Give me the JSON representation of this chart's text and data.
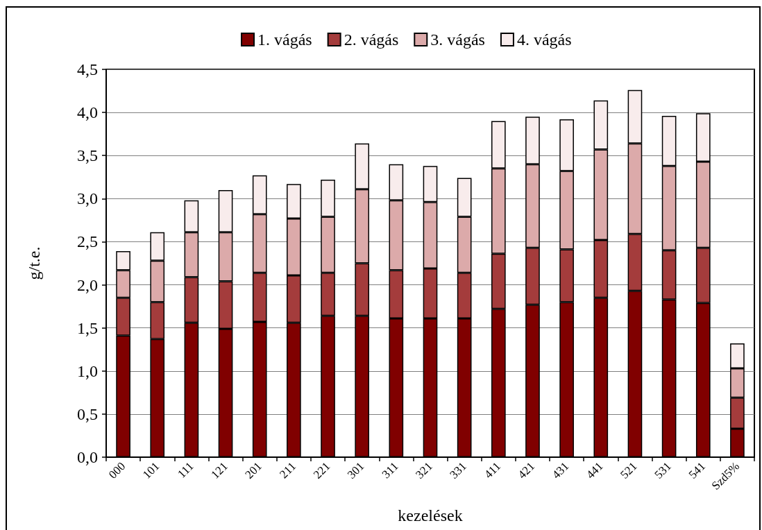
{
  "chart_data": {
    "type": "bar",
    "stacked": true,
    "categories": [
      "000",
      "101",
      "111",
      "121",
      "201",
      "211",
      "221",
      "301",
      "311",
      "321",
      "331",
      "411",
      "421",
      "431",
      "441",
      "521",
      "531",
      "541",
      "Szd5%"
    ],
    "series": [
      {
        "name": "1. vágás",
        "color": "#800000",
        "values": [
          1.41,
          1.37,
          1.56,
          1.49,
          1.57,
          1.56,
          1.64,
          1.64,
          1.61,
          1.61,
          1.61,
          1.72,
          1.77,
          1.8,
          1.85,
          1.93,
          1.83,
          1.79,
          0.33
        ]
      },
      {
        "name": "2. vágás",
        "color": "#a43c3c",
        "values": [
          0.44,
          0.43,
          0.53,
          0.55,
          0.57,
          0.55,
          0.5,
          0.61,
          0.56,
          0.58,
          0.53,
          0.64,
          0.66,
          0.61,
          0.67,
          0.66,
          0.57,
          0.64,
          0.36
        ]
      },
      {
        "name": "3. vágás",
        "color": "#dcaaaa",
        "values": [
          0.32,
          0.48,
          0.52,
          0.57,
          0.68,
          0.66,
          0.65,
          0.86,
          0.81,
          0.77,
          0.65,
          0.99,
          0.97,
          0.91,
          1.05,
          1.05,
          0.98,
          1.0,
          0.34
        ]
      },
      {
        "name": "4. vágás",
        "color": "#f8ecec",
        "values": [
          0.22,
          0.33,
          0.37,
          0.49,
          0.45,
          0.4,
          0.43,
          0.53,
          0.42,
          0.42,
          0.45,
          0.55,
          0.55,
          0.6,
          0.57,
          0.62,
          0.58,
          0.56,
          0.29
        ]
      }
    ],
    "ylim": [
      0,
      4.5
    ],
    "yticks": [
      {
        "value": 0,
        "label": "0,0"
      },
      {
        "value": 0.5,
        "label": "0,5"
      },
      {
        "value": 1,
        "label": "1,0"
      },
      {
        "value": 1.5,
        "label": "1,5"
      },
      {
        "value": 2,
        "label": "2,0"
      },
      {
        "value": 2.5,
        "label": "2,5"
      },
      {
        "value": 3,
        "label": "3,0"
      },
      {
        "value": 3.5,
        "label": "3,5"
      },
      {
        "value": 4,
        "label": "4,0"
      },
      {
        "value": 4.5,
        "label": "4,5"
      }
    ],
    "xlabel": "kezelések",
    "ylabel": "g/t.e.",
    "grid": "y",
    "legend": "top"
  }
}
